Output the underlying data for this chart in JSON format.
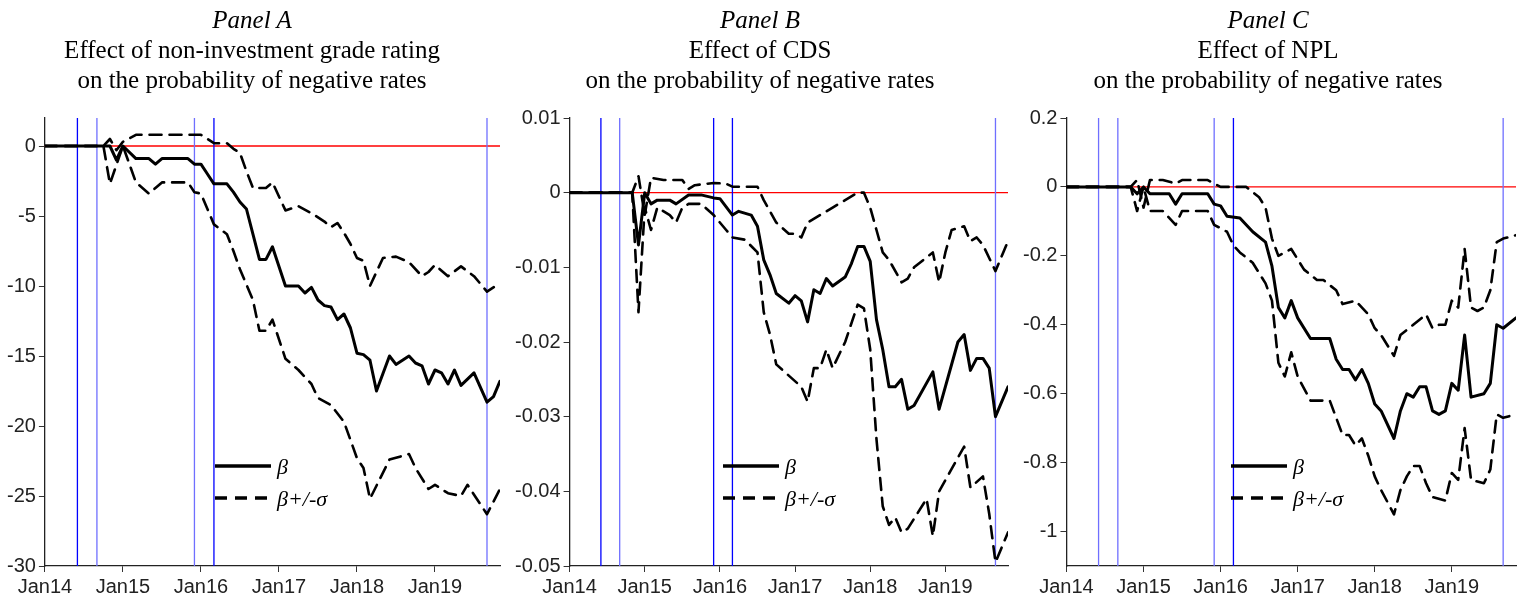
{
  "chart_data": [
    {
      "type": "line",
      "title": "Panel A",
      "subtitle": "Effect of non-investment grade rating\non the probability of negative rates",
      "xlim": [
        "2014-01",
        "2019-11"
      ],
      "xticks": [
        {
          "value": "2014-01",
          "label": "Jan14"
        },
        {
          "value": "2015-01",
          "label": "Jan15"
        },
        {
          "value": "2016-01",
          "label": "Jan16"
        },
        {
          "value": "2017-01",
          "label": "Jan17"
        },
        {
          "value": "2018-01",
          "label": "Jan18"
        },
        {
          "value": "2019-01",
          "label": "Jan19"
        }
      ],
      "ylim": [
        -30,
        2
      ],
      "yticks": [
        -30,
        -25,
        -20,
        -15,
        -10,
        -5,
        0
      ],
      "legend": "bottom right",
      "ref_lines": [
        {
          "axis": "y",
          "value": 0,
          "color": "#ff0000"
        },
        {
          "axis": "x",
          "value": "2014-06",
          "color": "#0000ff"
        },
        {
          "axis": "x",
          "value": "2014-09",
          "color": "#6f6fff"
        },
        {
          "axis": "x",
          "value": "2015-12",
          "color": "#6f6fff"
        },
        {
          "axis": "x",
          "value": "2016-03",
          "color": "#0000ff"
        },
        {
          "axis": "x",
          "value": "2019-09",
          "color": "#6f6fff"
        }
      ],
      "series": [
        {
          "name": "β",
          "color": "#000000",
          "line_style": "solid",
          "x": [
            "2014-01",
            "2014-11",
            "2014-12",
            "2015-01",
            "2015-03",
            "2015-05",
            "2015-06",
            "2015-07",
            "2015-11",
            "2015-12",
            "2016-01",
            "2016-02",
            "2016-03",
            "2016-05",
            "2016-06",
            "2016-07",
            "2016-08",
            "2016-10",
            "2016-11",
            "2016-12",
            "2017-02",
            "2017-04",
            "2017-05",
            "2017-06",
            "2017-07",
            "2017-08",
            "2017-09",
            "2017-10",
            "2017-11",
            "2017-12",
            "2018-01",
            "2018-02",
            "2018-03",
            "2018-04",
            "2018-06",
            "2018-07",
            "2018-09",
            "2018-10",
            "2018-11",
            "2018-12",
            "2019-01",
            "2019-02",
            "2019-03",
            "2019-04",
            "2019-05",
            "2019-07",
            "2019-09",
            "2019-10",
            "2019-11"
          ],
          "values": [
            0,
            0,
            -1,
            0,
            -0.9,
            -0.9,
            -1.3,
            -0.9,
            -0.9,
            -1.3,
            -1.3,
            -2,
            -2.7,
            -2.7,
            -3.3,
            -4,
            -4.5,
            -8.1,
            -8.1,
            -7.2,
            -10,
            -10,
            -10.5,
            -10.1,
            -11,
            -11.4,
            -11.5,
            -12.4,
            -12,
            -13,
            -14.8,
            -14.9,
            -15.3,
            -17.5,
            -15,
            -15.6,
            -15,
            -15.5,
            -15.7,
            -17,
            -16,
            -16.2,
            -17,
            -16,
            -17.1,
            -16.2,
            -18.3,
            -17.9,
            -16.8
          ]
        },
        {
          "name": "β+/-σ",
          "color": "#000000",
          "line_style": "dashed",
          "x": [
            "2014-01",
            "2014-10",
            "2014-11",
            "2014-12",
            "2015-01",
            "2015-03",
            "2016-01",
            "2016-02",
            "2016-03",
            "2016-05",
            "2016-06",
            "2016-07",
            "2016-08",
            "2016-09",
            "2016-11",
            "2016-12",
            "2017-02",
            "2017-04",
            "2017-06",
            "2017-08",
            "2017-09",
            "2017-10",
            "2017-11",
            "2017-12",
            "2018-01",
            "2018-02",
            "2018-03",
            "2018-05",
            "2018-07",
            "2018-09",
            "2018-11",
            "2018-12",
            "2019-01",
            "2019-03",
            "2019-05",
            "2019-07",
            "2019-09",
            "2019-11"
          ],
          "values": [
            0,
            0,
            0.5,
            -0.3,
            0.3,
            0.8,
            0.8,
            0.5,
            0.2,
            0.2,
            -0.2,
            -0.5,
            -1.8,
            -3,
            -3,
            -2.6,
            -4.6,
            -4.3,
            -4.8,
            -5.4,
            -5.8,
            -5.5,
            -6.2,
            -7,
            -8,
            -8.2,
            -10,
            -8,
            -7.9,
            -8.3,
            -9.3,
            -9,
            -8.5,
            -9.3,
            -8.6,
            -9.3,
            -10.4,
            -9.8
          ]
        },
        {
          "color": "#000000",
          "line_style": "dashed",
          "x": [
            "2014-01",
            "2014-10",
            "2014-11",
            "2015-01",
            "2015-03",
            "2015-05",
            "2015-06",
            "2015-07",
            "2015-11",
            "2015-12",
            "2016-01",
            "2016-02",
            "2016-03",
            "2016-05",
            "2016-06",
            "2016-07",
            "2016-09",
            "2016-10",
            "2016-11",
            "2016-12",
            "2017-02",
            "2017-04",
            "2017-06",
            "2017-07",
            "2017-09",
            "2017-11",
            "2017-12",
            "2018-01",
            "2018-02",
            "2018-03",
            "2018-06",
            "2018-09",
            "2018-10",
            "2018-12",
            "2019-01",
            "2019-03",
            "2019-05",
            "2019-06",
            "2019-09",
            "2019-11"
          ],
          "values": [
            0,
            0,
            -2.7,
            0,
            -2.6,
            -3.4,
            -3,
            -2.6,
            -2.6,
            -3.3,
            -3.4,
            -4.5,
            -5.6,
            -6.3,
            -7.5,
            -8.8,
            -11,
            -13.2,
            -13.2,
            -12.4,
            -15.2,
            -16,
            -17,
            -18,
            -18.5,
            -19.7,
            -21,
            -22.3,
            -23,
            -25.2,
            -22.4,
            -22,
            -23,
            -24.5,
            -24.2,
            -24.8,
            -25,
            -24.2,
            -26.3,
            -24.5
          ]
        }
      ]
    },
    {
      "type": "line",
      "title": "Panel B",
      "subtitle": "Effect of CDS\non the probability of negative rates",
      "xlim": [
        "2014-01",
        "2019-11"
      ],
      "xticks": [
        {
          "value": "2014-01",
          "label": "Jan14"
        },
        {
          "value": "2015-01",
          "label": "Jan15"
        },
        {
          "value": "2016-01",
          "label": "Jan16"
        },
        {
          "value": "2017-01",
          "label": "Jan17"
        },
        {
          "value": "2018-01",
          "label": "Jan18"
        },
        {
          "value": "2019-01",
          "label": "Jan19"
        }
      ],
      "ylim": [
        -0.05,
        0.01
      ],
      "yticks": [
        -0.05,
        -0.04,
        -0.03,
        -0.02,
        -0.01,
        0,
        0.01
      ],
      "legend": "bottom right",
      "ref_lines": [
        {
          "axis": "y",
          "value": 0,
          "color": "#ff0000"
        },
        {
          "axis": "x",
          "value": "2014-06",
          "color": "#0000ff"
        },
        {
          "axis": "x",
          "value": "2014-09",
          "color": "#6f6fff"
        },
        {
          "axis": "x",
          "value": "2015-12",
          "color": "#0000ff"
        },
        {
          "axis": "x",
          "value": "2016-03",
          "color": "#0000ff"
        },
        {
          "axis": "x",
          "value": "2019-09",
          "color": "#6f6fff"
        }
      ],
      "series": [
        {
          "name": "β",
          "color": "#000000",
          "line_style": "solid",
          "x": [
            "2014-01",
            "2014-11",
            "2014-12",
            "2015-01",
            "2015-02",
            "2015-03",
            "2015-05",
            "2015-06",
            "2015-08",
            "2015-10",
            "2015-12",
            "2016-01",
            "2016-03",
            "2016-04",
            "2016-06",
            "2016-07",
            "2016-08",
            "2016-09",
            "2016-10",
            "2016-12",
            "2017-01",
            "2017-02",
            "2017-03",
            "2017-04",
            "2017-05",
            "2017-06",
            "2017-07",
            "2017-09",
            "2017-10",
            "2017-11",
            "2017-12",
            "2018-01",
            "2018-02",
            "2018-03",
            "2018-04",
            "2018-05",
            "2018-06",
            "2018-07",
            "2018-08",
            "2018-11",
            "2018-12",
            "2019-03",
            "2019-04",
            "2019-05",
            "2019-06",
            "2019-07",
            "2019-08",
            "2019-09",
            "2019-11"
          ],
          "values": [
            0,
            0,
            -0.007,
            0,
            -0.0015,
            -0.001,
            -0.001,
            -0.0015,
            -0.0003,
            -0.0003,
            -0.0007,
            -0.0008,
            -0.003,
            -0.0025,
            -0.003,
            -0.0045,
            -0.009,
            -0.011,
            -0.0135,
            -0.0148,
            -0.0138,
            -0.0145,
            -0.0173,
            -0.013,
            -0.0135,
            -0.0115,
            -0.0125,
            -0.0113,
            -0.0095,
            -0.0072,
            -0.0072,
            -0.0092,
            -0.017,
            -0.021,
            -0.026,
            -0.026,
            -0.025,
            -0.029,
            -0.0285,
            -0.024,
            -0.029,
            -0.02,
            -0.019,
            -0.0238,
            -0.0222,
            -0.0222,
            -0.0235,
            -0.03,
            -0.026
          ]
        },
        {
          "name": "β+/-σ",
          "color": "#000000",
          "line_style": "dashed",
          "x": [
            "2014-01",
            "2014-11",
            "2014-12",
            "2015-01",
            "2015-02",
            "2015-04",
            "2015-07",
            "2015-08",
            "2015-09",
            "2015-12",
            "2016-02",
            "2016-03",
            "2016-07",
            "2016-08",
            "2016-10",
            "2016-12",
            "2017-01",
            "2017-02",
            "2017-03",
            "2017-05",
            "2017-07",
            "2017-09",
            "2017-11",
            "2017-12",
            "2018-01",
            "2018-02",
            "2018-03",
            "2018-04",
            "2018-06",
            "2018-07",
            "2018-08",
            "2018-11",
            "2018-12",
            "2019-01",
            "2019-02",
            "2019-04",
            "2019-05",
            "2019-06",
            "2019-07",
            "2019-09",
            "2019-11"
          ],
          "values": [
            0,
            0,
            0.0022,
            -0.003,
            0.002,
            0.0017,
            0.0017,
            0.0005,
            0.001,
            0.0013,
            0.0012,
            0.0008,
            0.0008,
            -0.001,
            -0.004,
            -0.0055,
            -0.0055,
            -0.006,
            -0.004,
            -0.003,
            -0.002,
            -0.001,
            0,
            0,
            -0.002,
            -0.005,
            -0.008,
            -0.009,
            -0.012,
            -0.0115,
            -0.01,
            -0.008,
            -0.012,
            -0.008,
            -0.005,
            -0.0045,
            -0.0065,
            -0.006,
            -0.007,
            -0.0105,
            -0.0065
          ]
        },
        {
          "color": "#000000",
          "line_style": "dashed",
          "x": [
            "2014-01",
            "2014-11",
            "2014-12",
            "2015-01",
            "2015-02",
            "2015-03",
            "2015-05",
            "2015-06",
            "2015-07",
            "2015-08",
            "2015-10",
            "2015-12",
            "2016-02",
            "2016-03",
            "2016-05",
            "2016-07",
            "2016-08",
            "2016-09",
            "2016-10",
            "2016-12",
            "2017-02",
            "2017-03",
            "2017-04",
            "2017-05",
            "2017-06",
            "2017-07",
            "2017-09",
            "2017-11",
            "2017-12",
            "2018-01",
            "2018-02",
            "2018-03",
            "2018-04",
            "2018-05",
            "2018-06",
            "2018-07",
            "2018-10",
            "2018-11",
            "2018-12",
            "2019-02",
            "2019-04",
            "2019-05",
            "2019-07",
            "2019-08",
            "2019-09",
            "2019-11"
          ],
          "values": [
            0,
            0,
            -0.016,
            -0.002,
            -0.005,
            -0.002,
            -0.003,
            -0.004,
            -0.002,
            -0.0015,
            -0.0015,
            -0.003,
            -0.005,
            -0.006,
            -0.0063,
            -0.008,
            -0.016,
            -0.019,
            -0.023,
            -0.0245,
            -0.026,
            -0.028,
            -0.0235,
            -0.0235,
            -0.021,
            -0.0235,
            -0.02,
            -0.015,
            -0.0155,
            -0.021,
            -0.033,
            -0.042,
            -0.0445,
            -0.0435,
            -0.0455,
            -0.045,
            -0.041,
            -0.046,
            -0.04,
            -0.037,
            -0.034,
            -0.0395,
            -0.038,
            -0.043,
            -0.0495,
            -0.0455
          ]
        }
      ]
    },
    {
      "type": "line",
      "title": "Panel C",
      "subtitle": "Effect of NPL\non the probability of negative rates",
      "xlim": [
        "2014-01",
        "2019-11"
      ],
      "xticks": [
        {
          "value": "2014-01",
          "label": "Jan14"
        },
        {
          "value": "2015-01",
          "label": "Jan15"
        },
        {
          "value": "2016-01",
          "label": "Jan16"
        },
        {
          "value": "2017-01",
          "label": "Jan17"
        },
        {
          "value": "2018-01",
          "label": "Jan18"
        },
        {
          "value": "2019-01",
          "label": "Jan19"
        }
      ],
      "ylim": [
        -1.1,
        0.2
      ],
      "yticks": [
        -1,
        -0.8,
        -0.6,
        -0.4,
        -0.2,
        0,
        0.2
      ],
      "legend": "bottom right",
      "ref_lines": [
        {
          "axis": "y",
          "value": 0,
          "color": "#ff0000"
        },
        {
          "axis": "x",
          "value": "2014-06",
          "color": "#6f6fff"
        },
        {
          "axis": "x",
          "value": "2014-09",
          "color": "#6f6fff"
        },
        {
          "axis": "x",
          "value": "2015-12",
          "color": "#6f6fff"
        },
        {
          "axis": "x",
          "value": "2016-03",
          "color": "#0000ff"
        },
        {
          "axis": "x",
          "value": "2019-09",
          "color": "#6f6fff"
        }
      ],
      "series": [
        {
          "name": "β",
          "color": "#000000",
          "line_style": "solid",
          "x": [
            "2014-01",
            "2014-11",
            "2014-12",
            "2015-01",
            "2015-02",
            "2015-05",
            "2015-06",
            "2015-07",
            "2015-11",
            "2015-12",
            "2016-01",
            "2016-02",
            "2016-04",
            "2016-06",
            "2016-08",
            "2016-09",
            "2016-10",
            "2016-11",
            "2016-12",
            "2017-01",
            "2017-03",
            "2017-06",
            "2017-07",
            "2017-08",
            "2017-09",
            "2017-10",
            "2017-11",
            "2017-12",
            "2018-01",
            "2018-02",
            "2018-04",
            "2018-05",
            "2018-06",
            "2018-07",
            "2018-08",
            "2018-09",
            "2018-10",
            "2018-11",
            "2018-12",
            "2019-01",
            "2019-02",
            "2019-03",
            "2019-04",
            "2019-06",
            "2019-07",
            "2019-08",
            "2019-09",
            "2019-11"
          ],
          "values": [
            0,
            0,
            -0.02,
            0,
            -0.02,
            -0.02,
            -0.05,
            -0.02,
            -0.02,
            -0.05,
            -0.055,
            -0.085,
            -0.09,
            -0.13,
            -0.16,
            -0.23,
            -0.35,
            -0.38,
            -0.33,
            -0.38,
            -0.44,
            -0.44,
            -0.5,
            -0.53,
            -0.53,
            -0.56,
            -0.53,
            -0.57,
            -0.63,
            -0.65,
            -0.73,
            -0.65,
            -0.6,
            -0.61,
            -0.58,
            -0.58,
            -0.65,
            -0.66,
            -0.65,
            -0.57,
            -0.59,
            -0.43,
            -0.61,
            -0.6,
            -0.57,
            -0.4,
            -0.41,
            -0.38
          ]
        },
        {
          "name": "β+/-σ",
          "color": "#000000",
          "line_style": "dashed",
          "x": [
            "2014-01",
            "2014-11",
            "2014-12",
            "2015-01",
            "2015-02",
            "2015-04",
            "2015-06",
            "2015-07",
            "2015-11",
            "2015-12",
            "2016-01",
            "2016-05",
            "2016-07",
            "2016-08",
            "2016-09",
            "2016-10",
            "2016-12",
            "2017-02",
            "2017-04",
            "2017-05",
            "2017-07",
            "2017-08",
            "2017-10",
            "2017-12",
            "2018-01",
            "2018-02",
            "2018-04",
            "2018-05",
            "2018-07",
            "2018-09",
            "2018-10",
            "2018-11",
            "2018-12",
            "2019-01",
            "2019-02",
            "2019-03",
            "2019-04",
            "2019-05",
            "2019-06",
            "2019-07",
            "2019-08",
            "2019-09",
            "2019-11"
          ],
          "values": [
            0,
            0,
            0.02,
            -0.06,
            0.02,
            0.02,
            0.01,
            0.02,
            0.02,
            0.01,
            0,
            0,
            -0.03,
            -0.06,
            -0.15,
            -0.2,
            -0.18,
            -0.24,
            -0.27,
            -0.27,
            -0.3,
            -0.34,
            -0.33,
            -0.37,
            -0.41,
            -0.43,
            -0.49,
            -0.43,
            -0.4,
            -0.37,
            -0.41,
            -0.4,
            -0.4,
            -0.33,
            -0.35,
            -0.18,
            -0.35,
            -0.36,
            -0.35,
            -0.3,
            -0.16,
            -0.15,
            -0.14
          ]
        },
        {
          "color": "#000000",
          "line_style": "dashed",
          "x": [
            "2014-01",
            "2014-11",
            "2014-12",
            "2015-01",
            "2015-02",
            "2015-04",
            "2015-06",
            "2015-07",
            "2015-11",
            "2015-12",
            "2016-01",
            "2016-02",
            "2016-03",
            "2016-04",
            "2016-06",
            "2016-08",
            "2016-09",
            "2016-10",
            "2016-11",
            "2016-12",
            "2017-01",
            "2017-03",
            "2017-06",
            "2017-07",
            "2017-08",
            "2017-09",
            "2017-10",
            "2017-11",
            "2017-12",
            "2018-01",
            "2018-02",
            "2018-04",
            "2018-05",
            "2018-06",
            "2018-07",
            "2018-08",
            "2018-09",
            "2018-10",
            "2018-12",
            "2019-01",
            "2019-02",
            "2019-03",
            "2019-04",
            "2019-06",
            "2019-07",
            "2019-08",
            "2019-09",
            "2019-11"
          ],
          "values": [
            0,
            0,
            -0.07,
            0,
            -0.07,
            -0.07,
            -0.11,
            -0.07,
            -0.07,
            -0.11,
            -0.12,
            -0.13,
            -0.17,
            -0.19,
            -0.22,
            -0.28,
            -0.33,
            -0.51,
            -0.55,
            -0.48,
            -0.55,
            -0.62,
            -0.62,
            -0.67,
            -0.72,
            -0.72,
            -0.75,
            -0.73,
            -0.78,
            -0.84,
            -0.88,
            -0.95,
            -0.88,
            -0.84,
            -0.81,
            -0.81,
            -0.86,
            -0.9,
            -0.91,
            -0.83,
            -0.85,
            -0.7,
            -0.85,
            -0.86,
            -0.82,
            -0.66,
            -0.67,
            -0.66
          ]
        }
      ]
    }
  ]
}
